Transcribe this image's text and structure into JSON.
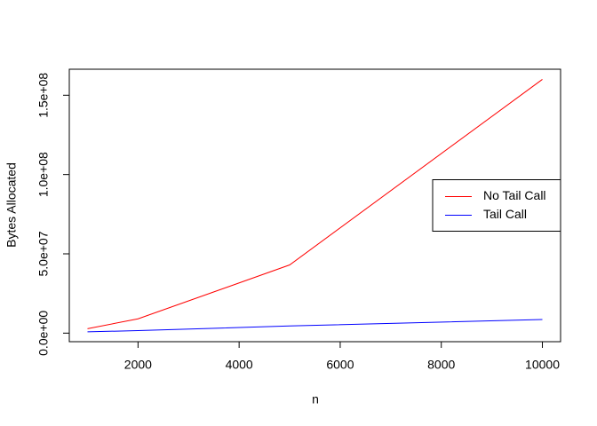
{
  "chart_data": {
    "type": "line",
    "x": [
      1000,
      2000,
      5000,
      10000
    ],
    "series": [
      {
        "name": "No Tail Call",
        "color": "#ff0000",
        "values": [
          2800000,
          9000000,
          43000000,
          160000000
        ]
      },
      {
        "name": "Tail Call",
        "color": "#0000ff",
        "values": [
          800000,
          1600000,
          4500000,
          8600000
        ]
      }
    ],
    "x_label": "n",
    "y_label": "Bytes Allocated",
    "xlim": [
      640,
      10360
    ],
    "ylim": [
      -5400000,
      166400000
    ],
    "xticks": [
      2000,
      4000,
      6000,
      8000,
      10000
    ],
    "yticks": [
      {
        "value": 0,
        "label": "0.0e+00"
      },
      {
        "value": 50000000,
        "label": "5.0e+07"
      },
      {
        "value": 100000000,
        "label": "1.0e+08"
      },
      {
        "value": 150000000,
        "label": "1.5e+08"
      }
    ],
    "legend": "right"
  }
}
